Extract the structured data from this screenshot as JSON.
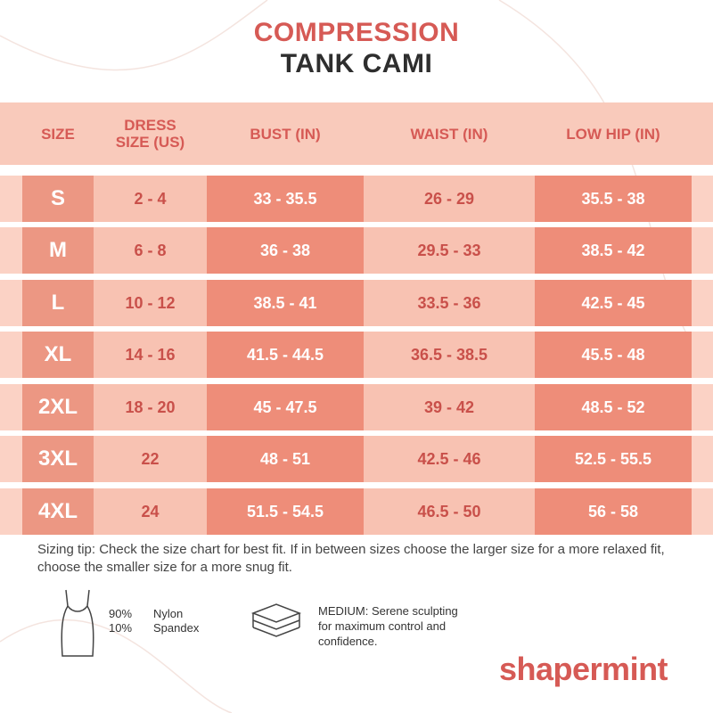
{
  "title": {
    "line1": "COMPRESSION",
    "line2": "TANK CAMI"
  },
  "table": {
    "headers": [
      "SIZE",
      "DRESS SIZE (US)",
      "BUST (IN)",
      "WAIST (IN)",
      "LOW HIP (IN)"
    ],
    "rows": [
      [
        "S",
        "2 - 4",
        "33 - 35.5",
        "26 - 29",
        "35.5 - 38"
      ],
      [
        "M",
        "6 - 8",
        "36 - 38",
        "29.5 - 33",
        "38.5 - 42"
      ],
      [
        "L",
        "10 - 12",
        "38.5 - 41",
        "33.5 - 36",
        "42.5 - 45"
      ],
      [
        "XL",
        "14 - 16",
        "41.5 - 44.5",
        "36.5 - 38.5",
        "45.5 - 48"
      ],
      [
        "2XL",
        "18 - 20",
        "45 - 47.5",
        "39 - 42",
        "48.5 - 52"
      ],
      [
        "3XL",
        "22",
        "48 - 51",
        "42.5 - 46",
        "52.5 - 55.5"
      ],
      [
        "4XL",
        "24",
        "51.5 - 54.5",
        "46.5 - 50",
        "56 - 58"
      ]
    ]
  },
  "tip": "Sizing tip: Check the size chart for best fit. If in between sizes choose the larger size for a more relaxed fit, choose the smaller size for a more snug fit.",
  "materials": [
    {
      "percent": "90%",
      "name": "Nylon"
    },
    {
      "percent": "10%",
      "name": "Spandex"
    }
  ],
  "compression": "MEDIUM: Serene sculpting for maximum control and confidence.",
  "brand": "shapermint"
}
